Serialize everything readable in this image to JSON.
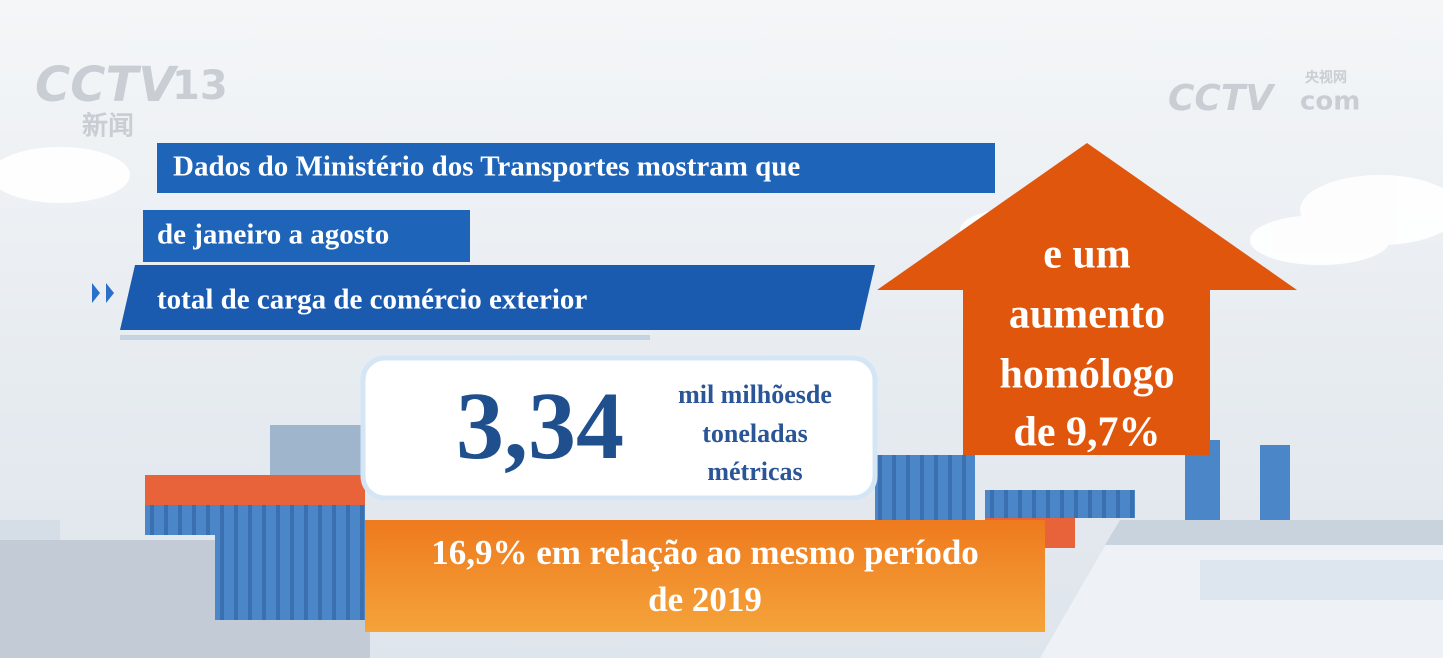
{
  "logos": {
    "channel": "CCTV",
    "channel_number": "13",
    "channel_name": "新闻",
    "site": "CCTV",
    "site_cn": "央视网",
    "site_suffix": "com"
  },
  "headline": {
    "lines": [
      "Dados do Ministério dos Transportes mostram que",
      "de janeiro a agosto",
      "total de carga de comércio exterior"
    ]
  },
  "figure": {
    "value": "3,34",
    "unit_lines": [
      "mil milhõesde",
      "toneladas",
      "métricas"
    ]
  },
  "growth": {
    "lines": [
      "16,9% em relação ao mesmo período",
      "de 2019"
    ]
  },
  "annual": {
    "lines": [
      "e um",
      "aumento",
      "homólogo",
      "de 9,7%"
    ]
  }
}
